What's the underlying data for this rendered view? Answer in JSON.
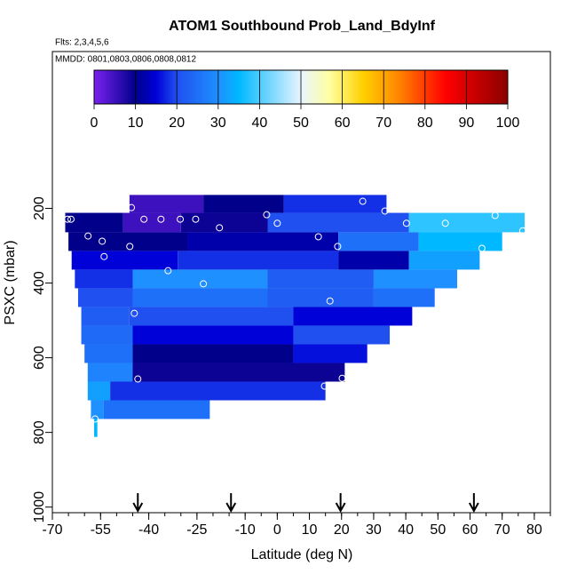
{
  "chart_data": {
    "type": "curtain",
    "title": "ATOM1 Southbound Prob_Land_BdyInf",
    "subtitle": "Flts: 2,3,4,5,6",
    "annotation": "MMDD: 0801,0803,0806,0808,0812",
    "x_label": "Latitude (deg N)",
    "y_label": "PSXC (mbar)",
    "xlim": [
      -70,
      85
    ],
    "xticks": [
      -70,
      -55,
      -40,
      -25,
      -10,
      0,
      10,
      20,
      30,
      40,
      50,
      60,
      70,
      80
    ],
    "ylim": [
      1015,
      -220
    ],
    "yticks": [
      200,
      400,
      600,
      800,
      1000
    ],
    "clim": [
      0,
      100
    ],
    "cticks": [
      0,
      10,
      20,
      30,
      40,
      50,
      60,
      70,
      80,
      90,
      100
    ],
    "colorscale": [
      [
        0,
        "#7a22f0"
      ],
      [
        10,
        "#00008b"
      ],
      [
        15,
        "#0000d8"
      ],
      [
        20,
        "#2050f0"
      ],
      [
        30,
        "#1e90ff"
      ],
      [
        35,
        "#00b8ff"
      ],
      [
        50,
        "#e8f4ff"
      ],
      [
        57,
        "#ffffa0"
      ],
      [
        65,
        "#ffd000"
      ],
      [
        73,
        "#ff8c00"
      ],
      [
        85,
        "#ff0000"
      ],
      [
        100,
        "#8b0000"
      ]
    ],
    "rows": [
      {
        "p": [
          164,
          212
        ],
        "edges": [
          -46,
          -23,
          2,
          34
        ],
        "values": [
          5,
          10,
          18
        ]
      },
      {
        "p": [
          212,
          264
        ],
        "edges": [
          -66,
          -48,
          -30,
          -3,
          41,
          77
        ],
        "values": [
          10,
          5,
          9,
          20,
          38
        ]
      },
      {
        "p": [
          264,
          314
        ],
        "edges": [
          -65,
          -28,
          19,
          44,
          70
        ],
        "values": [
          10,
          12,
          25,
          35
        ]
      },
      {
        "p": [
          314,
          364
        ],
        "edges": [
          -64,
          -31,
          19,
          41,
          63
        ],
        "values": [
          15,
          18,
          12,
          32
        ]
      },
      {
        "p": [
          364,
          414
        ],
        "edges": [
          -63,
          -45,
          -3,
          30,
          56
        ],
        "values": [
          18,
          30,
          22,
          30
        ]
      },
      {
        "p": [
          414,
          464
        ],
        "edges": [
          -62,
          -45,
          -3,
          30,
          49
        ],
        "values": [
          20,
          25,
          22,
          25
        ]
      },
      {
        "p": [
          464,
          514
        ],
        "edges": [
          -61,
          -46,
          5,
          42
        ],
        "values": [
          22,
          20,
          15
        ]
      },
      {
        "p": [
          514,
          564
        ],
        "edges": [
          -61,
          -45,
          5,
          35
        ],
        "values": [
          24,
          15,
          20
        ]
      },
      {
        "p": [
          564,
          614
        ],
        "edges": [
          -60,
          -45,
          5,
          28
        ],
        "values": [
          25,
          10,
          16
        ]
      },
      {
        "p": [
          614,
          664
        ],
        "edges": [
          -59,
          -45,
          21
        ],
        "values": [
          28,
          9
        ]
      },
      {
        "p": [
          664,
          714
        ],
        "edges": [
          -59,
          -52,
          15
        ],
        "values": [
          32,
          18
        ]
      },
      {
        "p": [
          714,
          764
        ],
        "edges": [
          -58,
          -54,
          -21
        ],
        "values": [
          30,
          25
        ]
      },
      {
        "p": [
          764,
          812
        ],
        "edges": [
          -57,
          -56
        ],
        "values": [
          35
        ]
      }
    ],
    "points": {
      "x": [
        -65.3,
        -64.2,
        -58.9,
        -54.5,
        -53.9,
        -45.9,
        -45.4,
        -41.5,
        -36.2,
        -30.2,
        -25.4,
        -18,
        -3.3,
        0,
        12.8,
        18.8,
        26.6,
        33.5,
        40.2,
        52.3,
        63.7,
        67.8,
        76.4,
        -34,
        -23,
        -44.5,
        16.4,
        -43.4,
        14.7,
        20.2,
        -56.7
      ],
      "y": [
        229,
        229,
        274,
        288,
        329,
        302,
        198,
        229,
        229,
        229,
        229,
        252,
        217,
        240,
        276,
        302,
        181,
        207,
        240,
        240,
        307,
        219,
        260,
        367,
        402,
        481,
        448,
        657,
        676,
        655,
        764
      ]
    },
    "arrows_x": [
      -43.4,
      -14.4,
      19.7,
      61.2
    ]
  }
}
